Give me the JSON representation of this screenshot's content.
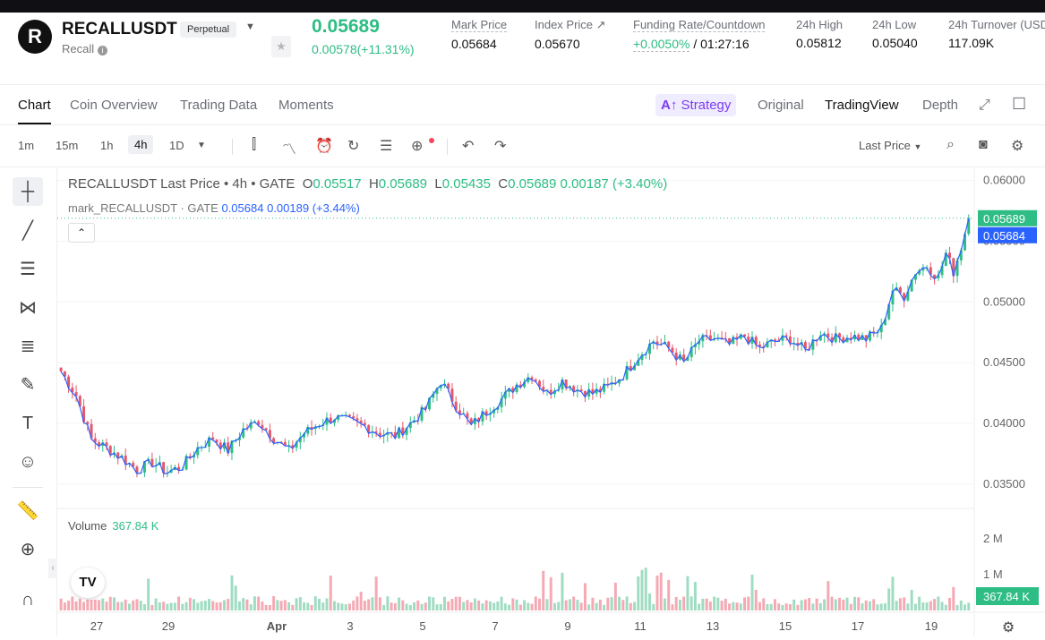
{
  "header": {
    "logo_letter": "R",
    "symbol": "RECALLUSDT",
    "badge": "Perpetual",
    "subtitle": "Recall",
    "price": "0.05689",
    "change": "0.00578(+11.31%)",
    "stats": [
      {
        "label": "Mark Price",
        "value": "0.05684"
      },
      {
        "label": "Index Price ↗",
        "value": "0.05670"
      },
      {
        "label": "Funding Rate/Countdown",
        "value_green": "+0.0050%",
        "value": " / 01:27:16"
      },
      {
        "label": "24h High",
        "value": "0.05812"
      },
      {
        "label": "24h Low",
        "value": "0.05040"
      },
      {
        "label": "24h Turnover (USD",
        "value": "117.09K"
      }
    ]
  },
  "tabs": [
    "Chart",
    "Coin Overview",
    "Trading Data",
    "Moments"
  ],
  "view_tabs": {
    "strategy": "Strategy",
    "original": "Original",
    "tradingview": "TradingView",
    "depth": "Depth"
  },
  "timeframes": [
    "1m",
    "15m",
    "1h",
    "4h",
    "1D"
  ],
  "active_timeframe": "4h",
  "price_type": "Last Price",
  "legend": {
    "title": "RECALLUSDT Last Price • 4h • GATE",
    "open": "0.05517",
    "high": "0.05689",
    "low": "0.05435",
    "close": "0.05689",
    "chg": "0.00187 (+3.40%)",
    "mark_title": "mark_RECALLUSDT · GATE",
    "mark_val": "0.05684",
    "mark_chg": "0.00189 (+3.44%)"
  },
  "volume": {
    "label": "Volume",
    "value": "367.84 K"
  },
  "chart_data": {
    "type": "candlestick",
    "y_ticks": [
      "0.06000",
      "0.05500",
      "0.05000",
      "0.04500",
      "0.04000",
      "0.03500"
    ],
    "ylim": [
      0.033,
      0.061
    ],
    "x_ticks": [
      "27",
      "29",
      "Apr",
      "3",
      "5",
      "7",
      "9",
      "11",
      "13",
      "15",
      "17",
      "19"
    ],
    "last_price_label": "0.05689",
    "mark_price_label": "0.05684",
    "vol_ticks": [
      "2 M",
      "1 M"
    ],
    "vol_label": "367.84 K",
    "vol_max": 2600000,
    "close_anchors": [
      [
        0,
        0.0443
      ],
      [
        4,
        0.0423
      ],
      [
        8,
        0.0387
      ],
      [
        12,
        0.038
      ],
      [
        16,
        0.0372
      ],
      [
        20,
        0.0362
      ],
      [
        24,
        0.0368
      ],
      [
        28,
        0.036
      ],
      [
        32,
        0.0365
      ],
      [
        36,
        0.038
      ],
      [
        40,
        0.0388
      ],
      [
        44,
        0.0378
      ],
      [
        48,
        0.0395
      ],
      [
        52,
        0.0402
      ],
      [
        56,
        0.0388
      ],
      [
        60,
        0.0378
      ],
      [
        64,
        0.0392
      ],
      [
        68,
        0.04
      ],
      [
        72,
        0.0405
      ],
      [
        76,
        0.0402
      ],
      [
        80,
        0.0398
      ],
      [
        84,
        0.0392
      ],
      [
        88,
        0.039
      ],
      [
        92,
        0.04
      ],
      [
        96,
        0.0412
      ],
      [
        100,
        0.0435
      ],
      [
        104,
        0.0415
      ],
      [
        108,
        0.0398
      ],
      [
        112,
        0.041
      ],
      [
        116,
        0.042
      ],
      [
        120,
        0.0432
      ],
      [
        124,
        0.044
      ],
      [
        128,
        0.0425
      ],
      [
        132,
        0.0435
      ],
      [
        136,
        0.0428
      ],
      [
        140,
        0.0425
      ],
      [
        144,
        0.043
      ],
      [
        148,
        0.044
      ],
      [
        152,
        0.0455
      ],
      [
        156,
        0.0468
      ],
      [
        160,
        0.0462
      ],
      [
        164,
        0.045
      ],
      [
        168,
        0.0468
      ],
      [
        172,
        0.047
      ],
      [
        176,
        0.0465
      ],
      [
        180,
        0.0472
      ],
      [
        184,
        0.0462
      ],
      [
        188,
        0.0468
      ],
      [
        192,
        0.047
      ],
      [
        196,
        0.046
      ],
      [
        200,
        0.0475
      ],
      [
        204,
        0.047
      ],
      [
        208,
        0.0472
      ],
      [
        212,
        0.047
      ],
      [
        216,
        0.0478
      ],
      [
        219,
        0.051
      ],
      [
        222,
        0.0505
      ],
      [
        225,
        0.0525
      ],
      [
        228,
        0.053
      ],
      [
        231,
        0.052
      ],
      [
        233,
        0.054
      ],
      [
        235,
        0.0525
      ],
      [
        237,
        0.0545
      ],
      [
        239,
        0.0569
      ]
    ]
  }
}
